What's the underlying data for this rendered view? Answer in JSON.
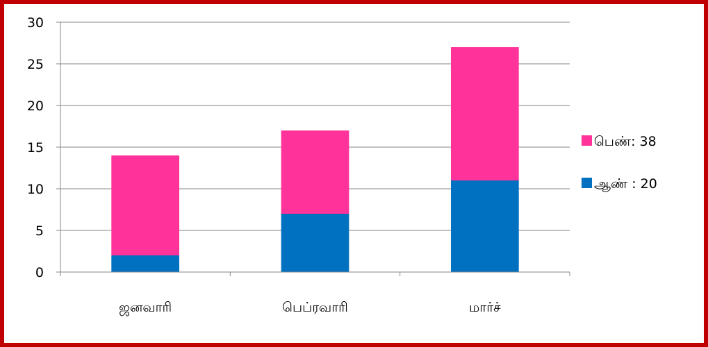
{
  "chart_data": {
    "type": "bar",
    "stacked": true,
    "categories": [
      "ஜனவாரி",
      "பெப்ரவாரி",
      "மார்ச்"
    ],
    "series": [
      {
        "name": "ஆண் : 20",
        "values": [
          2,
          7,
          11
        ],
        "color": "#0070c0"
      },
      {
        "name": "பெண்: 38",
        "values": [
          12,
          10,
          16
        ],
        "color": "#ff3399"
      }
    ],
    "yticks": [
      0,
      5,
      10,
      15,
      20,
      25,
      30
    ],
    "ylim": [
      0,
      30
    ],
    "grid": true,
    "legend_position": "right",
    "title": "",
    "xlabel": "",
    "ylabel": ""
  },
  "frame_color": "#c00000"
}
